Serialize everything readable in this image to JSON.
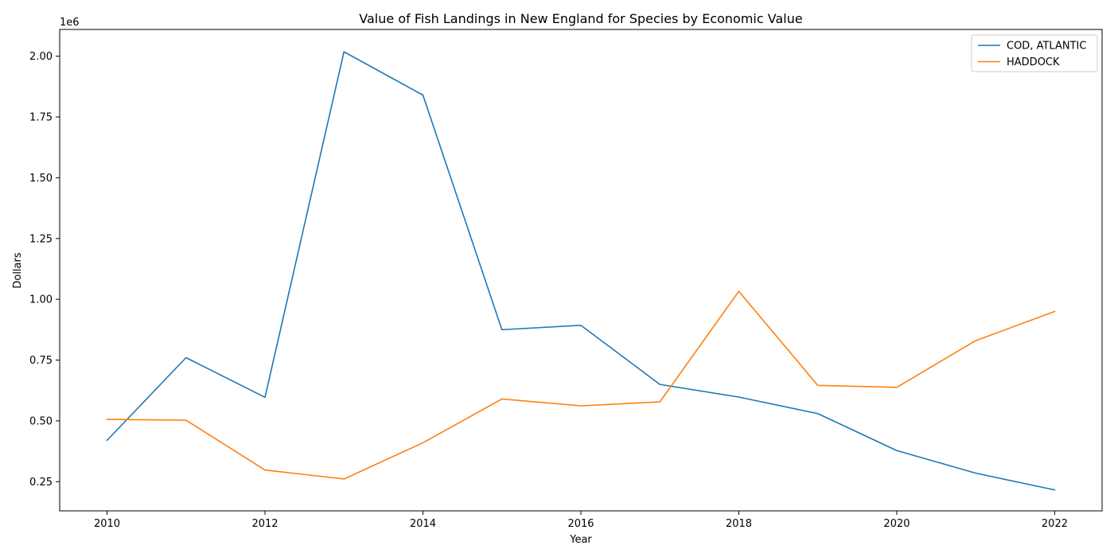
{
  "chart_data": {
    "type": "line",
    "title": "Value of Fish Landings in New England for Species by Economic Value",
    "xlabel": "Year",
    "ylabel": "Dollars",
    "y_offset_label": "1e6",
    "x": [
      2010,
      2011,
      2012,
      2013,
      2014,
      2015,
      2016,
      2017,
      2018,
      2019,
      2020,
      2021,
      2022
    ],
    "xlim": [
      2009.4,
      2022.6
    ],
    "ylim": [
      0.13,
      2.11
    ],
    "y_scale_multiplier": 1000000,
    "x_ticks": [
      2010,
      2012,
      2014,
      2016,
      2018,
      2020,
      2022
    ],
    "x_tick_labels": [
      "2010",
      "2012",
      "2014",
      "2016",
      "2018",
      "2020",
      "2022"
    ],
    "y_ticks": [
      0.25,
      0.5,
      0.75,
      1.0,
      1.25,
      1.5,
      1.75,
      2.0
    ],
    "y_tick_labels": [
      "0.25",
      "0.50",
      "0.75",
      "1.00",
      "1.25",
      "1.50",
      "1.75",
      "2.00"
    ],
    "grid": false,
    "legend_position": "top-right",
    "series": [
      {
        "name": "COD, ATLANTIC",
        "color": "#1f77b4",
        "values": [
          0.42,
          0.76,
          0.597,
          2.018,
          1.84,
          0.875,
          0.893,
          0.65,
          0.598,
          0.53,
          0.378,
          0.285,
          0.216
        ]
      },
      {
        "name": "HADDOCK",
        "color": "#ff7f0e",
        "values": [
          0.506,
          0.503,
          0.298,
          0.261,
          0.41,
          0.59,
          0.562,
          0.578,
          1.033,
          0.646,
          0.638,
          0.83,
          0.95
        ]
      }
    ]
  }
}
